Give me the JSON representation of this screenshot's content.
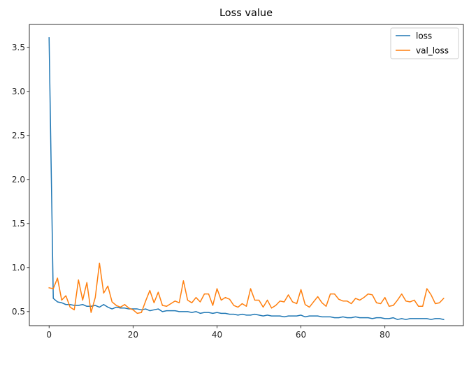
{
  "chart_data": {
    "type": "line",
    "title": "Loss value",
    "xlabel": "",
    "ylabel": "",
    "xlim": [
      -4.7,
      98.7
    ],
    "ylim": [
      0.34,
      3.76
    ],
    "xticks": [
      0,
      20,
      40,
      60,
      80
    ],
    "yticks": [
      0.5,
      1.0,
      1.5,
      2.0,
      2.5,
      3.0,
      3.5
    ],
    "grid": false,
    "legend_position": "top-right",
    "series": [
      {
        "name": "loss",
        "color": "#1f77b4",
        "x": [
          0,
          1,
          2,
          3,
          4,
          5,
          6,
          7,
          8,
          9,
          10,
          11,
          12,
          13,
          14,
          15,
          16,
          17,
          18,
          19,
          20,
          21,
          22,
          23,
          24,
          25,
          26,
          27,
          28,
          29,
          30,
          31,
          32,
          33,
          34,
          35,
          36,
          37,
          38,
          39,
          40,
          41,
          42,
          43,
          44,
          45,
          46,
          47,
          48,
          49,
          50,
          51,
          52,
          53,
          54,
          55,
          56,
          57,
          58,
          59,
          60,
          61,
          62,
          63,
          64,
          65,
          66,
          67,
          68,
          69,
          70,
          71,
          72,
          73,
          74,
          75,
          76,
          77,
          78,
          79,
          80,
          81,
          82,
          83,
          84,
          85,
          86,
          87,
          88,
          89,
          90,
          91,
          92,
          93,
          94
        ],
        "values": [
          3.61,
          0.65,
          0.61,
          0.6,
          0.58,
          0.58,
          0.57,
          0.57,
          0.58,
          0.56,
          0.56,
          0.57,
          0.55,
          0.58,
          0.55,
          0.53,
          0.55,
          0.54,
          0.54,
          0.53,
          0.53,
          0.53,
          0.52,
          0.53,
          0.51,
          0.52,
          0.53,
          0.5,
          0.51,
          0.51,
          0.51,
          0.5,
          0.5,
          0.5,
          0.49,
          0.5,
          0.48,
          0.49,
          0.49,
          0.48,
          0.49,
          0.48,
          0.48,
          0.47,
          0.47,
          0.46,
          0.47,
          0.46,
          0.46,
          0.47,
          0.46,
          0.45,
          0.46,
          0.45,
          0.45,
          0.45,
          0.44,
          0.45,
          0.45,
          0.45,
          0.46,
          0.44,
          0.45,
          0.45,
          0.45,
          0.44,
          0.44,
          0.44,
          0.43,
          0.43,
          0.44,
          0.43,
          0.43,
          0.44,
          0.43,
          0.43,
          0.43,
          0.42,
          0.43,
          0.43,
          0.42,
          0.42,
          0.43,
          0.41,
          0.42,
          0.41,
          0.42,
          0.42,
          0.42,
          0.42,
          0.42,
          0.41,
          0.42,
          0.42,
          0.41
        ]
      },
      {
        "name": "val_loss",
        "color": "#ff7f0e",
        "x": [
          0,
          1,
          2,
          3,
          4,
          5,
          6,
          7,
          8,
          9,
          10,
          11,
          12,
          13,
          14,
          15,
          16,
          17,
          18,
          19,
          20,
          21,
          22,
          23,
          24,
          25,
          26,
          27,
          28,
          29,
          30,
          31,
          32,
          33,
          34,
          35,
          36,
          37,
          38,
          39,
          40,
          41,
          42,
          43,
          44,
          45,
          46,
          47,
          48,
          49,
          50,
          51,
          52,
          53,
          54,
          55,
          56,
          57,
          58,
          59,
          60,
          61,
          62,
          63,
          64,
          65,
          66,
          67,
          68,
          69,
          70,
          71,
          72,
          73,
          74,
          75,
          76,
          77,
          78,
          79,
          80,
          81,
          82,
          83,
          84,
          85,
          86,
          87,
          88,
          89,
          90,
          91,
          92,
          93,
          94
        ],
        "values": [
          0.77,
          0.76,
          0.88,
          0.63,
          0.68,
          0.55,
          0.52,
          0.86,
          0.63,
          0.83,
          0.49,
          0.66,
          1.05,
          0.71,
          0.79,
          0.61,
          0.57,
          0.55,
          0.58,
          0.54,
          0.52,
          0.48,
          0.49,
          0.62,
          0.74,
          0.6,
          0.72,
          0.57,
          0.56,
          0.59,
          0.62,
          0.6,
          0.85,
          0.63,
          0.6,
          0.66,
          0.61,
          0.7,
          0.7,
          0.57,
          0.76,
          0.63,
          0.66,
          0.64,
          0.57,
          0.55,
          0.59,
          0.56,
          0.76,
          0.63,
          0.63,
          0.55,
          0.63,
          0.54,
          0.57,
          0.62,
          0.61,
          0.69,
          0.61,
          0.59,
          0.75,
          0.58,
          0.55,
          0.61,
          0.67,
          0.6,
          0.56,
          0.7,
          0.7,
          0.64,
          0.62,
          0.62,
          0.59,
          0.65,
          0.63,
          0.66,
          0.7,
          0.69,
          0.6,
          0.59,
          0.66,
          0.56,
          0.57,
          0.63,
          0.7,
          0.62,
          0.61,
          0.63,
          0.56,
          0.56,
          0.76,
          0.69,
          0.59,
          0.6,
          0.65
        ]
      }
    ]
  }
}
